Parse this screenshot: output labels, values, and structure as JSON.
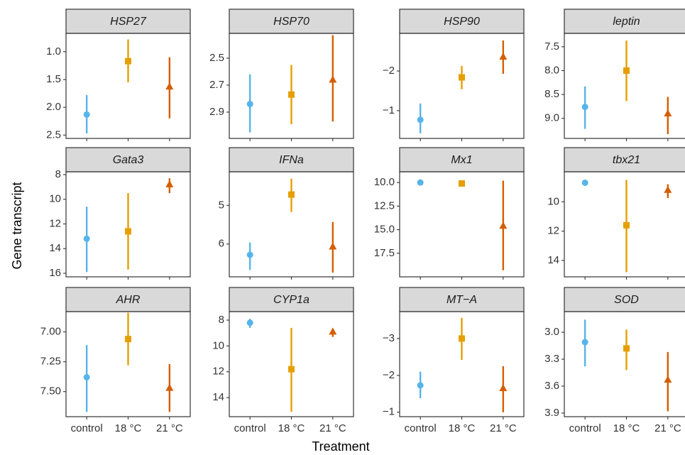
{
  "x_label": "Treatment",
  "y_label": "Gene transcript",
  "colors": [
    "#56b4e9",
    "#e69f00",
    "#d55e00"
  ],
  "markers": [
    "circle",
    "square",
    "triangle"
  ],
  "chart_data": [
    {
      "type": "pointrange",
      "title": "HSP27",
      "categories": [
        "control",
        "18 °C",
        "21 °C"
      ],
      "values": [
        2.13,
        1.17,
        1.63
      ],
      "lower": [
        1.78,
        0.78,
        1.1
      ],
      "upper": [
        2.47,
        1.55,
        2.2
      ],
      "y_reversed": true,
      "ylim": [
        0.67,
        2.56
      ],
      "yticks": [
        {
          "value": 1,
          "label": "1.0"
        },
        1.5,
        {
          "value": 2,
          "label": "2.0"
        },
        2.5
      ]
    },
    {
      "type": "pointrange",
      "title": "HSP70",
      "categories": [
        "control",
        "18 °C",
        "21 °C"
      ],
      "values": [
        2.84,
        2.77,
        2.66
      ],
      "lower": [
        2.62,
        2.55,
        2.33
      ],
      "upper": [
        3.05,
        2.99,
        2.97
      ],
      "y_reversed": true,
      "ylim": [
        2.316,
        3.095
      ],
      "yticks": [
        2.5,
        2.7,
        2.9
      ]
    },
    {
      "type": "pointrange",
      "title": "HSP90",
      "categories": [
        "control",
        "18 °C",
        "21 °C"
      ],
      "values": [
        -0.77,
        -1.84,
        -2.36
      ],
      "lower": [
        -1.18,
        -2.13,
        -2.77
      ],
      "upper": [
        -0.43,
        -1.54,
        -1.93
      ],
      "y_reversed": true,
      "ylim": [
        -2.95,
        -0.3
      ],
      "yticks": [
        {
          "value": -2,
          "label": "−2"
        },
        {
          "value": -1,
          "label": "−1"
        }
      ]
    },
    {
      "type": "pointrange",
      "title": "leptin",
      "categories": [
        "control",
        "18 °C",
        "21 °C"
      ],
      "values": [
        8.76,
        8.0,
        8.9
      ],
      "lower": [
        8.33,
        7.37,
        8.55
      ],
      "upper": [
        9.22,
        8.64,
        9.33
      ],
      "y_reversed": true,
      "ylim": [
        7.22,
        9.42
      ],
      "yticks": [
        7.5,
        {
          "value": 8,
          "label": "8.0"
        },
        8.5,
        {
          "value": 9,
          "label": "9.0"
        }
      ]
    },
    {
      "type": "pointrange",
      "title": "Gata3",
      "categories": [
        "control",
        "18 °C",
        "21 °C"
      ],
      "values": [
        13.2,
        12.6,
        8.8
      ],
      "lower": [
        10.6,
        9.5,
        8.3
      ],
      "upper": [
        15.9,
        15.7,
        9.5
      ],
      "y_reversed": true,
      "ylim": [
        7.77,
        16.29
      ],
      "yticks": [
        8,
        10,
        12,
        14,
        16
      ]
    },
    {
      "type": "pointrange",
      "title": "IFNa",
      "categories": [
        "control",
        "18 °C",
        "21 °C"
      ],
      "values": [
        6.28,
        4.72,
        6.07
      ],
      "lower": [
        5.96,
        4.31,
        5.43
      ],
      "upper": [
        6.67,
        5.17,
        6.74
      ],
      "y_reversed": true,
      "ylim": [
        4.13,
        6.85
      ],
      "yticks": [
        5,
        6
      ]
    },
    {
      "type": "pointrange",
      "title": "Mx1",
      "categories": [
        "control",
        "18 °C",
        "21 °C"
      ],
      "values": [
        10.0,
        10.1,
        14.6
      ],
      "lower": [
        9.9,
        10.0,
        9.8
      ],
      "upper": [
        10.1,
        10.2,
        19.3
      ],
      "y_reversed": true,
      "ylim": [
        8.86,
        20.0
      ],
      "yticks": [
        {
          "value": 10,
          "label": "10.0"
        },
        12.5,
        {
          "value": 15,
          "label": "15.0"
        },
        17.5
      ]
    },
    {
      "type": "pointrange",
      "title": "tbx21",
      "categories": [
        "control",
        "18 °C",
        "21 °C"
      ],
      "values": [
        8.7,
        11.6,
        9.2
      ],
      "lower": [
        8.6,
        8.5,
        8.8
      ],
      "upper": [
        8.8,
        14.8,
        9.75
      ],
      "y_reversed": true,
      "ylim": [
        7.95,
        15.12
      ],
      "yticks": [
        10,
        12,
        14
      ]
    },
    {
      "type": "pointrange",
      "title": "AHR",
      "categories": [
        "control",
        "18 °C",
        "21 °C"
      ],
      "values": [
        7.38,
        7.06,
        7.47
      ],
      "lower": [
        7.11,
        6.84,
        7.27
      ],
      "upper": [
        7.67,
        7.28,
        7.67
      ],
      "y_reversed": true,
      "ylim": [
        6.83,
        7.71
      ],
      "yticks": [
        {
          "value": 7,
          "label": "7.00"
        },
        7.25,
        {
          "value": 7.5,
          "label": "7.50"
        }
      ]
    },
    {
      "type": "pointrange",
      "title": "CYP1a",
      "categories": [
        "control",
        "18 °C",
        "21 °C"
      ],
      "values": [
        8.2,
        11.8,
        8.9
      ],
      "lower": [
        7.9,
        8.6,
        8.7
      ],
      "upper": [
        8.6,
        15.1,
        9.3
      ],
      "y_reversed": true,
      "ylim": [
        7.34,
        15.48
      ],
      "yticks": [
        8,
        10,
        12,
        14
      ]
    },
    {
      "type": "pointrange",
      "title": "MT−A",
      "categories": [
        "control",
        "18 °C",
        "21 °C"
      ],
      "values": [
        -1.73,
        -3.0,
        -1.65
      ],
      "lower": [
        -2.1,
        -3.56,
        -2.25
      ],
      "upper": [
        -1.38,
        -2.42,
        -1.0
      ],
      "y_reversed": true,
      "ylim": [
        -3.73,
        -0.88
      ],
      "yticks": [
        {
          "value": -3,
          "label": "−3"
        },
        {
          "value": -2,
          "label": "−2"
        },
        {
          "value": -1,
          "label": "−1"
        }
      ]
    },
    {
      "type": "pointrange",
      "title": "SOD",
      "categories": [
        "control",
        "18 °C",
        "21 °C"
      ],
      "values": [
        3.11,
        3.18,
        3.53
      ],
      "lower": [
        2.86,
        2.97,
        3.22
      ],
      "upper": [
        3.38,
        3.42,
        3.88
      ],
      "y_reversed": true,
      "ylim": [
        2.77,
        3.94
      ],
      "yticks": [
        {
          "value": 3,
          "label": "3.0"
        },
        3.3,
        3.6,
        3.9
      ]
    }
  ]
}
